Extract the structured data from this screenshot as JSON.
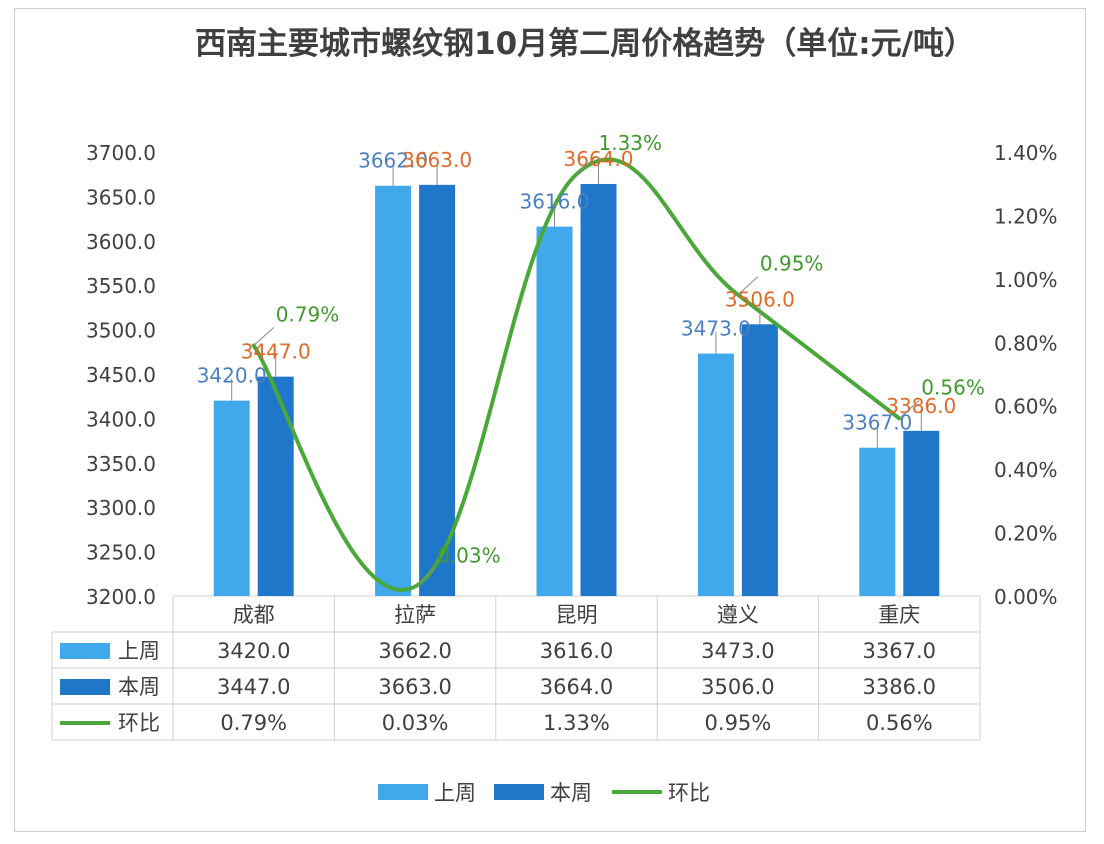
{
  "chart_data": {
    "type": "bar",
    "title": "西南主要城市螺纹钢10月第二周价格趋势（单位:元/吨）",
    "categories": [
      "成都",
      "拉萨",
      "昆明",
      "遵义",
      "重庆"
    ],
    "series": [
      {
        "name": "上周",
        "type": "bar",
        "axis": "left",
        "color": "#3fa9ec",
        "values": [
          3420.0,
          3662.0,
          3616.0,
          3473.0,
          3367.0
        ],
        "labels": [
          "3420.0",
          "3662.0",
          "3616.0",
          "3473.0",
          "3367.0"
        ]
      },
      {
        "name": "本周",
        "type": "bar",
        "axis": "left",
        "color": "#1f77c9",
        "values": [
          3447.0,
          3663.0,
          3664.0,
          3506.0,
          3386.0
        ],
        "labels": [
          "3447.0",
          "3663.0",
          "3664.0",
          "3506.0",
          "3386.0"
        ]
      },
      {
        "name": "环比",
        "type": "line",
        "axis": "right",
        "color": "#4aa83a",
        "values": [
          0.79,
          0.03,
          1.33,
          0.95,
          0.56
        ],
        "labels": [
          "0.79%",
          "0.03%",
          "1.33%",
          "0.95%",
          "0.56%"
        ]
      }
    ],
    "y_left": {
      "min": 3200,
      "max": 3700,
      "ticks": [
        "3200.0",
        "3250.0",
        "3300.0",
        "3350.0",
        "3400.0",
        "3450.0",
        "3500.0",
        "3550.0",
        "3600.0",
        "3650.0",
        "3700.0"
      ]
    },
    "y_right": {
      "min": 0,
      "max": 1.4,
      "ticks": [
        "0.00%",
        "0.20%",
        "0.40%",
        "0.60%",
        "0.80%",
        "1.00%",
        "1.20%",
        "1.40%"
      ]
    },
    "data_table": true,
    "legend_position": "bottom",
    "grid": false,
    "label_colors": {
      "上周": "#4a7fc1",
      "本周": "#e06a28",
      "环比": "#3f9a2e"
    }
  }
}
